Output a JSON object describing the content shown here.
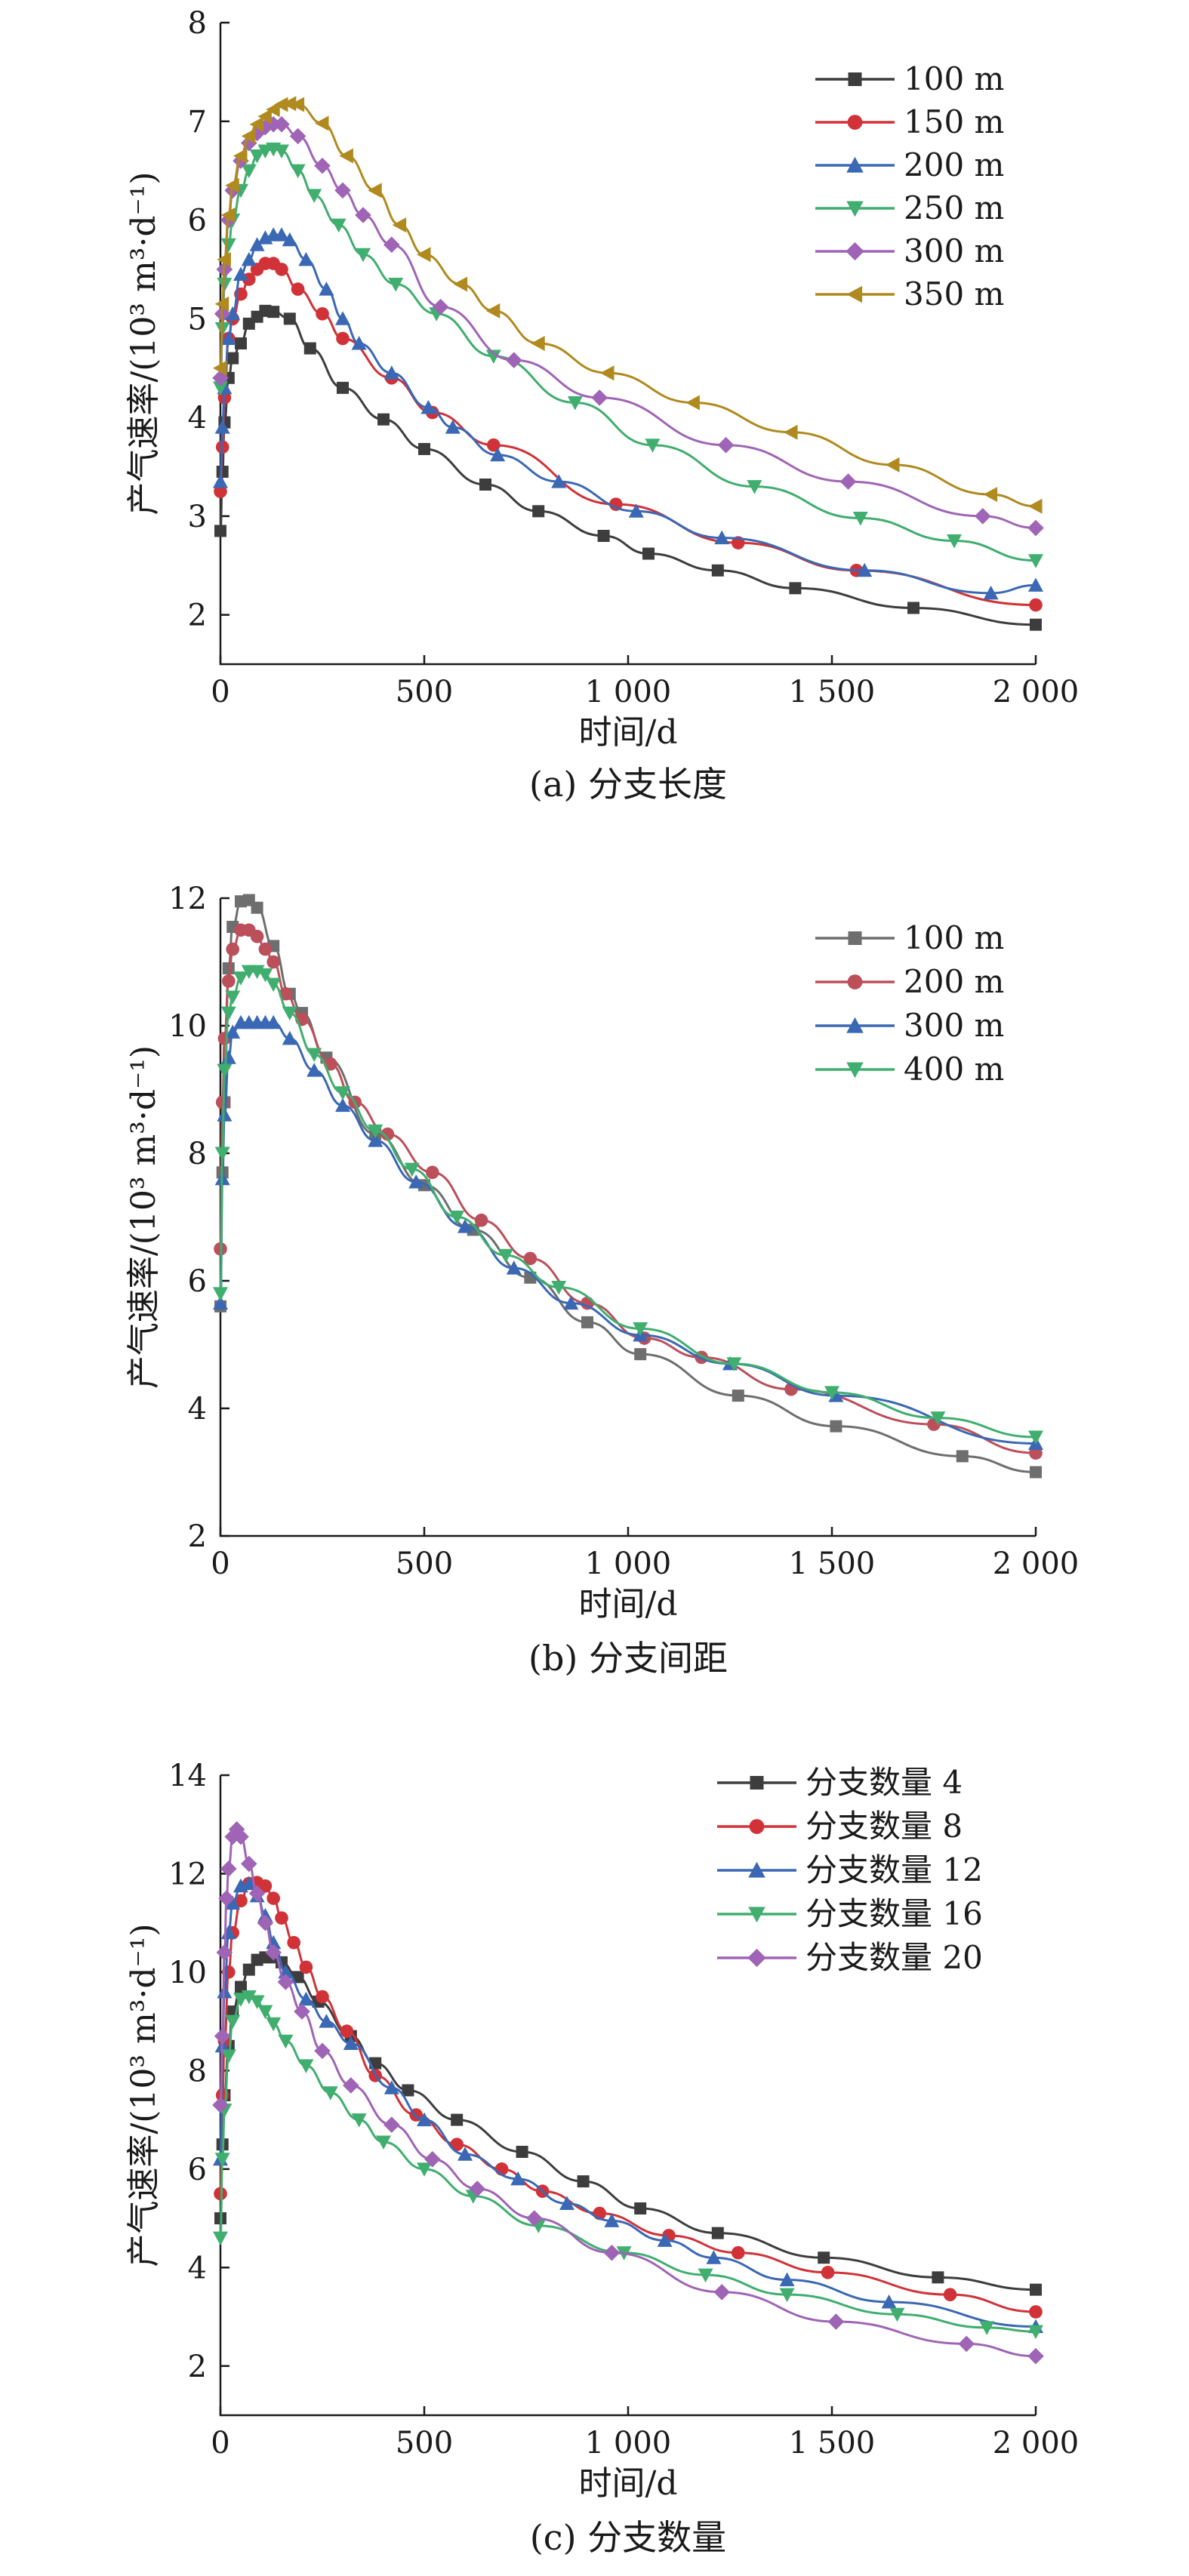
{
  "chart_data": [
    {
      "type": "line",
      "caption": "(a) 分支长度",
      "xlabel": "时间/d",
      "ylabel": "产气速率/(10³ m³·d⁻¹)",
      "xlim": [
        0,
        2000
      ],
      "ylim": [
        1.5,
        8
      ],
      "xticks": [
        0,
        500,
        1000,
        1500,
        2000
      ],
      "xtick_labels": [
        "0",
        "500",
        "1 000",
        "1 500",
        "2 000"
      ],
      "yticks": [
        2,
        3,
        4,
        5,
        6,
        7,
        8
      ],
      "ytick_labels": [
        "2",
        "3",
        "4",
        "5",
        "6",
        "7",
        "8"
      ],
      "legend_position": "top-right",
      "series": [
        {
          "name": "100 m",
          "color": "#3d3d3d",
          "marker": "square",
          "x": [
            0,
            5,
            10,
            20,
            30,
            50,
            70,
            90,
            110,
            130,
            170,
            220,
            300,
            400,
            500,
            650,
            780,
            940,
            1050,
            1220,
            1410,
            1700,
            2000
          ],
          "y": [
            2.85,
            3.45,
            3.95,
            4.4,
            4.6,
            4.75,
            4.95,
            5.02,
            5.08,
            5.07,
            5.0,
            4.7,
            4.3,
            3.98,
            3.68,
            3.32,
            3.05,
            2.8,
            2.62,
            2.45,
            2.27,
            2.07,
            1.9
          ]
        },
        {
          "name": "150 m",
          "color": "#d03238",
          "marker": "circle",
          "x": [
            0,
            5,
            10,
            20,
            30,
            50,
            70,
            90,
            110,
            130,
            150,
            190,
            250,
            300,
            420,
            520,
            670,
            970,
            1270,
            1560,
            2000
          ],
          "y": [
            3.25,
            3.7,
            4.2,
            4.8,
            5.0,
            5.25,
            5.4,
            5.5,
            5.56,
            5.56,
            5.5,
            5.3,
            5.05,
            4.8,
            4.4,
            4.05,
            3.72,
            3.12,
            2.73,
            2.45,
            2.1
          ]
        },
        {
          "name": "200 m",
          "color": "#3a68b4",
          "marker": "triangle-up",
          "x": [
            0,
            5,
            10,
            20,
            30,
            50,
            70,
            90,
            110,
            130,
            150,
            170,
            210,
            260,
            300,
            340,
            420,
            510,
            570,
            680,
            830,
            1020,
            1230,
            1580,
            1890,
            2000
          ],
          "y": [
            3.35,
            3.9,
            4.3,
            4.8,
            5.05,
            5.45,
            5.6,
            5.75,
            5.82,
            5.85,
            5.85,
            5.8,
            5.6,
            5.3,
            5.0,
            4.75,
            4.45,
            4.1,
            3.9,
            3.62,
            3.35,
            3.05,
            2.78,
            2.45,
            2.22,
            2.3
          ]
        },
        {
          "name": "250 m",
          "color": "#3fae6e",
          "marker": "triangle-down",
          "x": [
            0,
            5,
            10,
            20,
            30,
            50,
            70,
            90,
            110,
            130,
            150,
            190,
            230,
            290,
            350,
            430,
            530,
            670,
            870,
            1060,
            1310,
            1570,
            1800,
            2000
          ],
          "y": [
            4.3,
            4.9,
            5.35,
            5.75,
            6.0,
            6.3,
            6.5,
            6.65,
            6.7,
            6.72,
            6.7,
            6.5,
            6.25,
            5.95,
            5.65,
            5.35,
            5.05,
            4.62,
            4.15,
            3.72,
            3.3,
            2.98,
            2.75,
            2.55
          ]
        },
        {
          "name": "300 m",
          "color": "#9f64b5",
          "marker": "diamond",
          "x": [
            0,
            5,
            10,
            20,
            30,
            50,
            70,
            90,
            110,
            130,
            150,
            190,
            250,
            300,
            350,
            420,
            540,
            720,
            930,
            1240,
            1540,
            1870,
            2000
          ],
          "y": [
            4.4,
            5.05,
            5.5,
            6.0,
            6.3,
            6.6,
            6.78,
            6.88,
            6.94,
            6.97,
            6.97,
            6.85,
            6.55,
            6.3,
            6.05,
            5.75,
            5.12,
            4.58,
            4.2,
            3.72,
            3.35,
            3.0,
            2.88
          ]
        },
        {
          "name": "350 m",
          "color": "#b08a1e",
          "marker": "triangle-left",
          "x": [
            0,
            5,
            10,
            20,
            30,
            50,
            70,
            90,
            110,
            130,
            150,
            170,
            190,
            250,
            310,
            380,
            440,
            500,
            590,
            670,
            780,
            950,
            1160,
            1400,
            1650,
            1890,
            2000
          ],
          "y": [
            4.5,
            5.15,
            5.6,
            6.05,
            6.35,
            6.65,
            6.85,
            6.97,
            7.05,
            7.12,
            7.17,
            7.18,
            7.17,
            6.98,
            6.65,
            6.3,
            5.95,
            5.65,
            5.35,
            5.08,
            4.75,
            4.45,
            4.15,
            3.85,
            3.52,
            3.22,
            3.1
          ]
        }
      ]
    },
    {
      "type": "line",
      "caption": "(b) 分支间距",
      "xlabel": "时间/d",
      "ylabel": "产气速率/(10³ m³·d⁻¹)",
      "xlim": [
        0,
        2000
      ],
      "ylim": [
        2,
        12
      ],
      "xticks": [
        0,
        500,
        1000,
        1500,
        2000
      ],
      "xtick_labels": [
        "0",
        "500",
        "1 000",
        "1 500",
        "2 000"
      ],
      "yticks": [
        2,
        4,
        6,
        8,
        10,
        12
      ],
      "ytick_labels": [
        "2",
        "4",
        "6",
        "8",
        "10",
        "12"
      ],
      "legend_position": "top-right",
      "series": [
        {
          "name": "100 m",
          "color": "#6e6e6e",
          "marker": "square",
          "x": [
            0,
            5,
            10,
            20,
            30,
            50,
            70,
            90,
            130,
            170,
            200,
            260,
            380,
            500,
            620,
            760,
            900,
            1030,
            1270,
            1510,
            1820,
            2000
          ],
          "y": [
            5.6,
            7.7,
            8.8,
            10.9,
            11.55,
            11.95,
            11.97,
            11.85,
            11.25,
            10.5,
            10.2,
            9.5,
            8.3,
            7.5,
            6.8,
            6.05,
            5.35,
            4.85,
            4.2,
            3.72,
            3.25,
            3.0
          ]
        },
        {
          "name": "200 m",
          "color": "#bb4f5a",
          "marker": "circle",
          "x": [
            0,
            5,
            10,
            20,
            30,
            50,
            70,
            90,
            110,
            130,
            160,
            200,
            270,
            330,
            410,
            520,
            640,
            760,
            900,
            1040,
            1180,
            1400,
            1750,
            2000
          ],
          "y": [
            6.5,
            8.8,
            9.8,
            10.7,
            11.2,
            11.5,
            11.5,
            11.4,
            11.2,
            11.0,
            10.5,
            10.1,
            9.4,
            8.8,
            8.3,
            7.7,
            6.95,
            6.35,
            5.65,
            5.1,
            4.8,
            4.3,
            3.75,
            3.3
          ]
        },
        {
          "name": "300 m",
          "color": "#3a68b4",
          "marker": "triangle-up",
          "x": [
            0,
            5,
            10,
            20,
            30,
            50,
            70,
            90,
            110,
            130,
            170,
            230,
            300,
            380,
            480,
            600,
            720,
            860,
            1030,
            1250,
            1510,
            2000
          ],
          "y": [
            5.65,
            7.6,
            8.6,
            9.5,
            9.9,
            10.05,
            10.05,
            10.05,
            10.05,
            10.05,
            9.8,
            9.3,
            8.75,
            8.2,
            7.55,
            6.85,
            6.2,
            5.65,
            5.15,
            4.7,
            4.2,
            3.45
          ]
        },
        {
          "name": "400 m",
          "color": "#3fae6e",
          "marker": "triangle-down",
          "x": [
            0,
            5,
            10,
            20,
            30,
            50,
            70,
            90,
            110,
            130,
            170,
            230,
            300,
            380,
            470,
            580,
            700,
            830,
            1030,
            1260,
            1500,
            1760,
            2000
          ],
          "y": [
            5.8,
            8.0,
            9.3,
            10.2,
            10.45,
            10.75,
            10.85,
            10.85,
            10.8,
            10.65,
            10.2,
            9.55,
            8.95,
            8.35,
            7.75,
            7.0,
            6.4,
            5.9,
            5.25,
            4.7,
            4.25,
            3.85,
            3.55
          ]
        }
      ]
    },
    {
      "type": "line",
      "caption": "(c) 分支数量",
      "xlabel": "时间/d",
      "ylabel": "产气速率/(10³ m³·d⁻¹)",
      "xlim": [
        0,
        2000
      ],
      "ylim": [
        1,
        14
      ],
      "xticks": [
        0,
        500,
        1000,
        1500,
        2000
      ],
      "xtick_labels": [
        "0",
        "500",
        "1 000",
        "1 500",
        "2 000"
      ],
      "yticks": [
        2,
        4,
        6,
        8,
        10,
        12,
        14
      ],
      "ytick_labels": [
        "2",
        "4",
        "6",
        "8",
        "10",
        "12",
        "14"
      ],
      "legend_position": "top-right",
      "series": [
        {
          "name": "分支数量 4",
          "color": "#3d3d3d",
          "marker": "square",
          "x": [
            0,
            5,
            10,
            20,
            30,
            50,
            70,
            90,
            110,
            130,
            150,
            190,
            240,
            320,
            380,
            460,
            580,
            740,
            890,
            1030,
            1220,
            1480,
            1760,
            2000
          ],
          "y": [
            5.0,
            6.5,
            7.5,
            8.5,
            9.2,
            9.7,
            10.05,
            10.25,
            10.3,
            10.3,
            10.2,
            9.9,
            9.4,
            8.7,
            8.15,
            7.6,
            7.0,
            6.35,
            5.75,
            5.2,
            4.7,
            4.2,
            3.8,
            3.55
          ]
        },
        {
          "name": "分支数量 8",
          "color": "#d03238",
          "marker": "circle",
          "x": [
            0,
            5,
            10,
            20,
            30,
            50,
            70,
            90,
            110,
            130,
            150,
            180,
            210,
            250,
            310,
            380,
            480,
            580,
            690,
            790,
            930,
            1100,
            1270,
            1490,
            1790,
            2000
          ],
          "y": [
            5.5,
            7.5,
            8.6,
            10.0,
            10.8,
            11.45,
            11.8,
            11.82,
            11.75,
            11.5,
            11.1,
            10.6,
            10.1,
            9.5,
            8.8,
            7.9,
            7.1,
            6.5,
            6.0,
            5.55,
            5.1,
            4.65,
            4.3,
            3.9,
            3.45,
            3.1
          ]
        },
        {
          "name": "分支数量 12",
          "color": "#3a68b4",
          "marker": "triangle-up",
          "x": [
            0,
            5,
            10,
            20,
            30,
            50,
            70,
            90,
            110,
            130,
            160,
            210,
            260,
            320,
            420,
            500,
            600,
            730,
            850,
            960,
            1090,
            1210,
            1390,
            1640,
            2000
          ],
          "y": [
            6.2,
            8.5,
            9.6,
            10.8,
            11.4,
            11.75,
            11.8,
            11.55,
            11.15,
            10.6,
            10.0,
            9.45,
            9.0,
            8.55,
            7.65,
            7.0,
            6.3,
            5.8,
            5.3,
            4.95,
            4.55,
            4.2,
            3.75,
            3.3,
            2.8
          ]
        },
        {
          "name": "分支数量 16",
          "color": "#3fae6e",
          "marker": "triangle-down",
          "x": [
            0,
            5,
            10,
            20,
            30,
            50,
            70,
            90,
            110,
            130,
            160,
            210,
            270,
            340,
            400,
            500,
            620,
            780,
            990,
            1190,
            1390,
            1660,
            1880,
            2000
          ],
          "y": [
            4.6,
            6.2,
            7.2,
            8.3,
            9.0,
            9.45,
            9.5,
            9.4,
            9.2,
            8.95,
            8.6,
            8.1,
            7.55,
            7.0,
            6.55,
            6.0,
            5.45,
            4.85,
            4.3,
            3.85,
            3.45,
            3.05,
            2.78,
            2.7
          ]
        },
        {
          "name": "分支数量 20",
          "color": "#9f64b5",
          "marker": "diamond",
          "x": [
            0,
            5,
            10,
            15,
            20,
            30,
            40,
            50,
            70,
            90,
            110,
            130,
            160,
            200,
            250,
            320,
            420,
            520,
            630,
            770,
            960,
            1230,
            1510,
            1830,
            2000
          ],
          "y": [
            7.3,
            8.7,
            10.4,
            11.5,
            12.1,
            12.75,
            12.9,
            12.75,
            12.2,
            11.6,
            11.0,
            10.4,
            9.8,
            9.2,
            8.4,
            7.7,
            6.9,
            6.2,
            5.6,
            5.0,
            4.3,
            3.5,
            2.9,
            2.45,
            2.2
          ]
        }
      ]
    }
  ]
}
